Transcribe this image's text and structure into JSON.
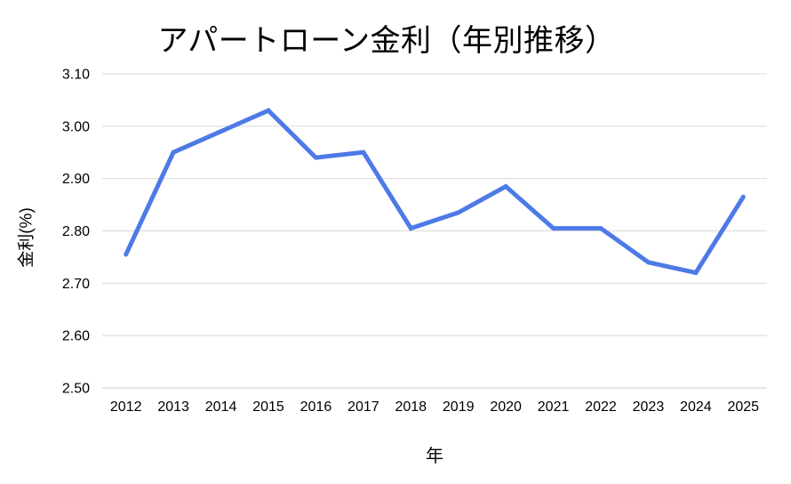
{
  "chart_data": {
    "type": "line",
    "title": "アパートローン金利（年別推移）",
    "xlabel": "年",
    "ylabel": "金利(%)",
    "categories": [
      "2012",
      "2013",
      "2014",
      "2015",
      "2016",
      "2017",
      "2018",
      "2019",
      "2020",
      "2021",
      "2022",
      "2023",
      "2024",
      "2025"
    ],
    "values": [
      2.755,
      2.95,
      2.99,
      3.03,
      2.94,
      2.95,
      2.805,
      2.835,
      2.885,
      2.805,
      2.805,
      2.74,
      2.72,
      2.865
    ],
    "ylim": [
      2.5,
      3.1
    ],
    "ytick_labels": [
      "2.50",
      "2.60",
      "2.70",
      "2.80",
      "2.90",
      "3.00",
      "3.10"
    ],
    "grid": true,
    "legend": "none",
    "line_color": "#4d7ae7",
    "gridline_color": "#d9d9d9",
    "baseline_color": "#cccccc",
    "text_color": "#000000",
    "background_color": "#ffffff"
  }
}
